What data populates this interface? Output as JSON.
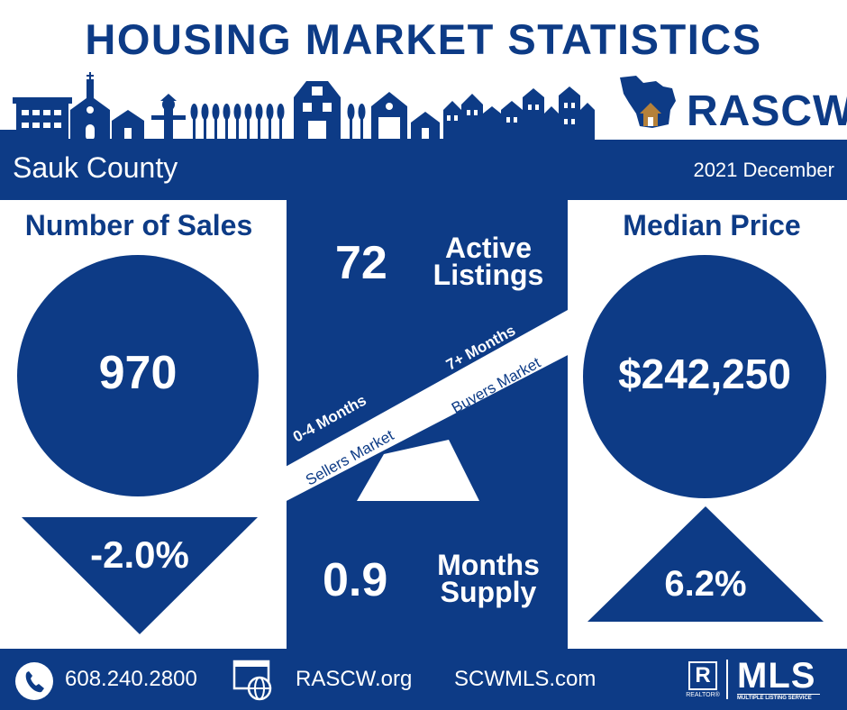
{
  "header": {
    "title": "HOUSING MARKET STATISTICS",
    "brand": "RASCW"
  },
  "band": {
    "county": "Sauk County",
    "period": "2021 December"
  },
  "sales": {
    "title": "Number of Sales",
    "value": "970",
    "change": "-2.0%",
    "direction": "down"
  },
  "listings": {
    "value": "72",
    "label_line1": "Active",
    "label_line2": "Listings"
  },
  "seesaw": {
    "left_heading": "0-4 Months",
    "left_sub": "Sellers Market",
    "right_heading": "7+ Months",
    "right_sub": "Buyers Market"
  },
  "supply": {
    "value": "0.9",
    "label_line1": "Months",
    "label_line2": "Supply"
  },
  "price": {
    "title": "Median Price",
    "value": "$242,250",
    "change": "6.2%",
    "direction": "up"
  },
  "footer": {
    "phone": "608.240.2800",
    "site1": "RASCW.org",
    "site2": "SCWMLS.com",
    "realtor_mark": "R",
    "realtor_caption": "REALTOR®",
    "mls": "MLS",
    "mls_caption": "MULTIPLE LISTING SERVICE"
  },
  "colors": {
    "navy": "#0d3b86",
    "white": "#ffffff",
    "house_roof": "#b5813a"
  },
  "icons": [
    "phone-icon",
    "web-icon",
    "wisconsin-map-icon",
    "house-icon"
  ]
}
